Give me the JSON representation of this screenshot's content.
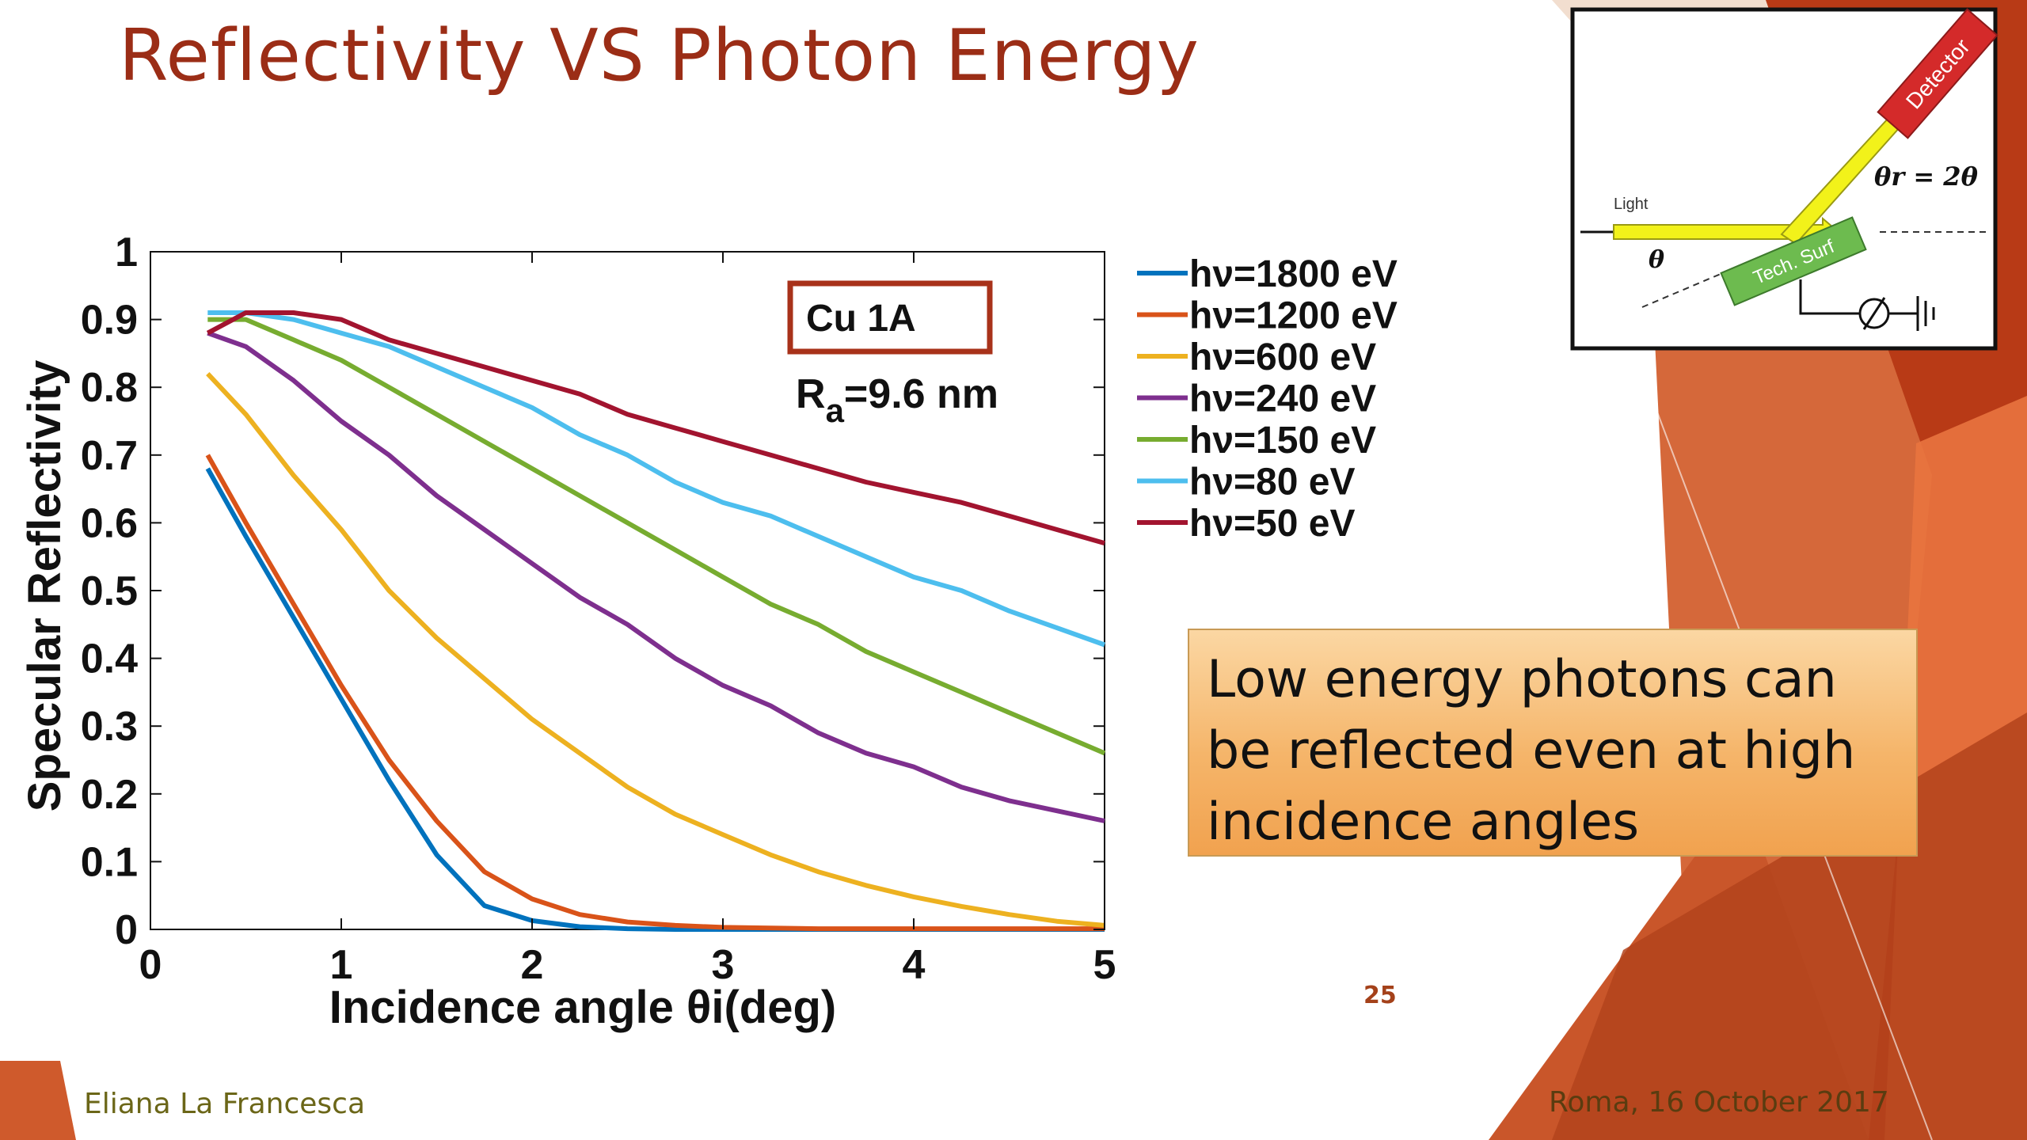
{
  "slide": {
    "title": "Reflectivity VS Photon Energy",
    "callout_lines": [
      "Low energy photons can",
      "be reflected even at high",
      "incidence angles"
    ],
    "page_number": "25",
    "author": "Eliana La Francesca",
    "date_location": "Roma, 16 October 2017"
  },
  "colors": {
    "title": "#9b2d16",
    "theme_orange": "#c0411a",
    "callout_fill": "#f5b56a"
  },
  "inset": {
    "detector_label": "Detector",
    "light_label": "Light",
    "surface_label": "Tech. Surf",
    "theta_label": "θ",
    "theta_r_label": "θr = 2θ"
  },
  "chart_data": {
    "type": "line",
    "xlabel": "Incidence angle θi(deg)",
    "ylabel": "Specular Reflectivity",
    "xlim": [
      0,
      5
    ],
    "ylim": [
      0,
      1
    ],
    "xticks": [
      "0",
      "1",
      "2",
      "3",
      "4",
      "5"
    ],
    "yticks": [
      "0",
      "0.1",
      "0.2",
      "0.3",
      "0.4",
      "0.5",
      "0.6",
      "0.7",
      "0.8",
      "0.9",
      "1"
    ],
    "grid": false,
    "legend_position": "right",
    "annotation_box": "Cu 1A",
    "annotation_text": "Ra=9.6 nm",
    "x": [
      0.3,
      0.5,
      0.75,
      1.0,
      1.25,
      1.5,
      1.75,
      2.0,
      2.25,
      2.5,
      2.75,
      3.0,
      3.25,
      3.5,
      3.75,
      4.0,
      4.25,
      4.5,
      4.75,
      5.0
    ],
    "series": [
      {
        "name": "hν=1800 eV",
        "color": "#0072bd",
        "values": [
          0.68,
          0.58,
          0.46,
          0.34,
          0.22,
          0.11,
          0.035,
          0.013,
          0.004,
          0.001,
          0,
          0,
          0,
          0,
          0,
          0,
          0,
          0,
          0,
          0
        ]
      },
      {
        "name": "hν=1200 eV",
        "color": "#d95319",
        "values": [
          0.7,
          0.6,
          0.48,
          0.36,
          0.25,
          0.16,
          0.085,
          0.045,
          0.022,
          0.011,
          0.006,
          0.003,
          0.002,
          0.001,
          0.001,
          0.001,
          0.001,
          0.001,
          0.001,
          0.001
        ]
      },
      {
        "name": "hν=600 eV",
        "color": "#edb120",
        "values": [
          0.82,
          0.76,
          0.67,
          0.59,
          0.5,
          0.43,
          0.37,
          0.31,
          0.26,
          0.21,
          0.17,
          0.14,
          0.11,
          0.085,
          0.065,
          0.048,
          0.034,
          0.022,
          0.012,
          0.006
        ]
      },
      {
        "name": "hν=240 eV",
        "color": "#7e2f8e",
        "values": [
          0.88,
          0.86,
          0.81,
          0.75,
          0.7,
          0.64,
          0.59,
          0.54,
          0.49,
          0.45,
          0.4,
          0.36,
          0.33,
          0.29,
          0.26,
          0.24,
          0.21,
          0.19,
          0.175,
          0.16
        ]
      },
      {
        "name": "hν=150 eV",
        "color": "#77ac30",
        "values": [
          0.9,
          0.9,
          0.87,
          0.84,
          0.8,
          0.76,
          0.72,
          0.68,
          0.64,
          0.6,
          0.56,
          0.52,
          0.48,
          0.45,
          0.41,
          0.38,
          0.35,
          0.32,
          0.29,
          0.26
        ]
      },
      {
        "name": "hν=80 eV",
        "color": "#4dbeee",
        "values": [
          0.91,
          0.91,
          0.9,
          0.88,
          0.86,
          0.83,
          0.8,
          0.77,
          0.73,
          0.7,
          0.66,
          0.63,
          0.61,
          0.58,
          0.55,
          0.52,
          0.5,
          0.47,
          0.445,
          0.42
        ]
      },
      {
        "name": "hν=50 eV",
        "color": "#a2142f",
        "values": [
          0.88,
          0.91,
          0.91,
          0.9,
          0.87,
          0.85,
          0.83,
          0.81,
          0.79,
          0.76,
          0.74,
          0.72,
          0.7,
          0.68,
          0.66,
          0.645,
          0.63,
          0.61,
          0.59,
          0.57
        ]
      }
    ]
  }
}
